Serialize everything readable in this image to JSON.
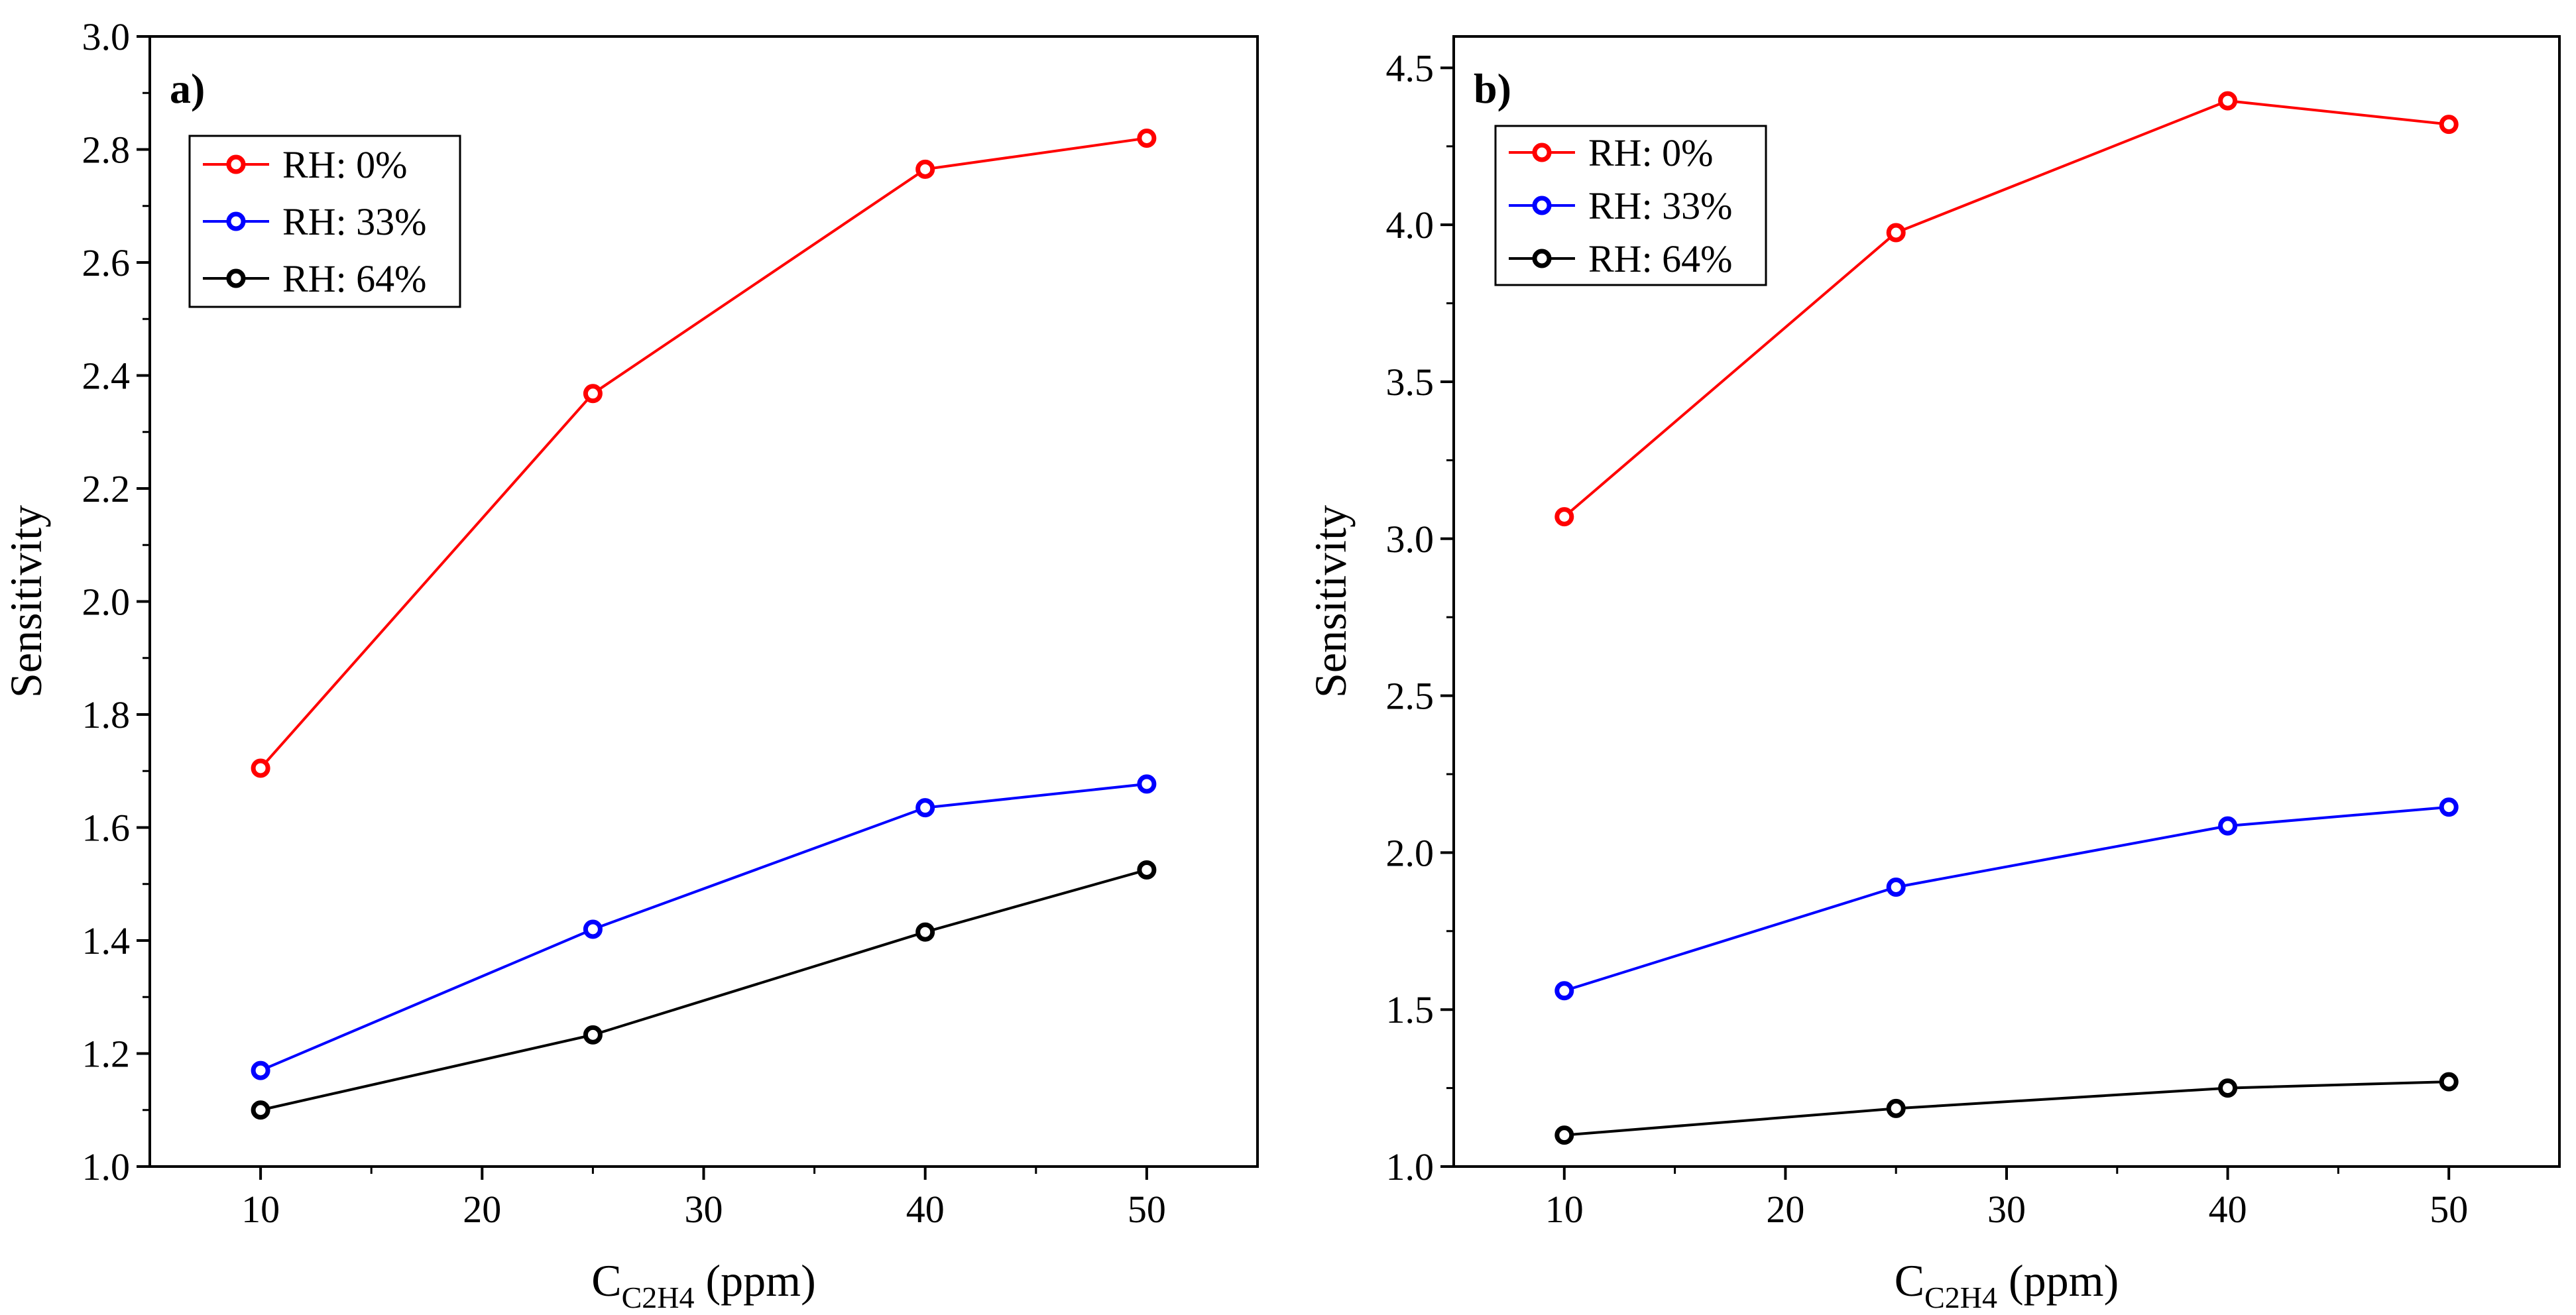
{
  "chart_data": [
    {
      "type": "line",
      "panel_label": "a)",
      "x": [
        10,
        25,
        40,
        50
      ],
      "series": [
        {
          "name": "RH: 0%",
          "color": "#ff0000",
          "values": [
            1.705,
            2.368,
            2.765,
            2.82
          ]
        },
        {
          "name": "RH: 33%",
          "color": "#0000ff",
          "values": [
            1.17,
            1.42,
            1.635,
            1.677
          ]
        },
        {
          "name": "RH: 64%",
          "color": "#000000",
          "values": [
            1.1,
            1.233,
            1.415,
            1.525
          ]
        }
      ],
      "xlabel": {
        "main": "C",
        "sub": "C2H4",
        "unit": " (ppm)"
      },
      "ylabel": "Sensitivity",
      "xlim": [
        5,
        55
      ],
      "ylim": [
        1.0,
        3.0
      ],
      "xticks": [
        10,
        20,
        30,
        40,
        50
      ],
      "xtick_labels": [
        "10",
        "20",
        "30",
        "40",
        "50"
      ],
      "yticks": [
        1.0,
        1.2,
        1.4,
        1.6,
        1.8,
        2.0,
        2.2,
        2.4,
        2.6,
        2.8,
        3.0
      ],
      "ytick_labels": [
        "1.0",
        "1.2",
        "1.4",
        "1.6",
        "1.8",
        "2.0",
        "2.2",
        "2.4",
        "2.6",
        "2.8",
        "3.0"
      ],
      "legend": "top-left",
      "grid": false
    },
    {
      "type": "line",
      "panel_label": "b)",
      "x": [
        10,
        25,
        40,
        50
      ],
      "series": [
        {
          "name": "RH: 0%",
          "color": "#ff0000",
          "values": [
            3.07,
            3.975,
            4.395,
            4.32
          ]
        },
        {
          "name": "RH: 33%",
          "color": "#0000ff",
          "values": [
            1.56,
            1.89,
            2.085,
            2.145
          ]
        },
        {
          "name": "RH: 64%",
          "color": "#000000",
          "values": [
            1.1,
            1.185,
            1.25,
            1.27
          ]
        }
      ],
      "xlabel": {
        "main": "C",
        "sub": "C2H4",
        "unit": " (ppm)"
      },
      "ylabel": "Sensitivity",
      "xlim": [
        5,
        55
      ],
      "ylim": [
        1.0,
        4.6
      ],
      "xticks": [
        10,
        20,
        30,
        40,
        50
      ],
      "xtick_labels": [
        "10",
        "20",
        "30",
        "40",
        "50"
      ],
      "yticks": [
        1.0,
        1.5,
        2.0,
        2.5,
        3.0,
        3.5,
        4.0,
        4.5
      ],
      "ytick_labels": [
        "1.0",
        "1.5",
        "2.0",
        "2.5",
        "3.0",
        "3.5",
        "4.0",
        "4.5"
      ],
      "legend": "top-left",
      "grid": false
    }
  ]
}
